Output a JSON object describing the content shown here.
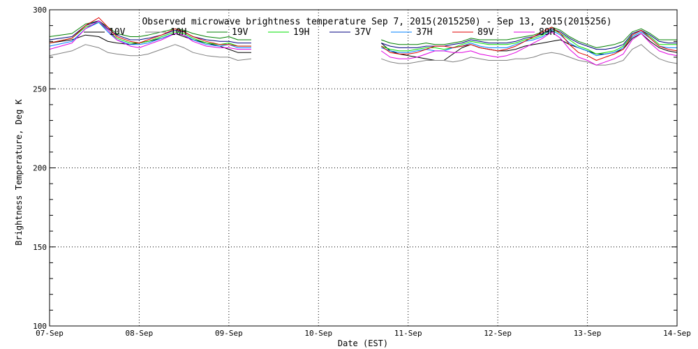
{
  "chart_data": {
    "type": "line",
    "title": "Observed microwave brightness temperature Sep  7, 2015(2015250) - Sep 13, 2015(2015256)",
    "xlabel": "Date (EST)",
    "ylabel": "Brightness Temperature, Deg K",
    "ylim": [
      100,
      300
    ],
    "xlim": [
      0,
      7
    ],
    "grid": true,
    "legend_position": "top",
    "y_ticks": [
      100,
      150,
      200,
      250,
      300
    ],
    "x_ticks": [
      {
        "x": 0,
        "label": "07-Sep"
      },
      {
        "x": 1,
        "label": "08-Sep"
      },
      {
        "x": 2,
        "label": "09-Sep"
      },
      {
        "x": 3,
        "label": "10-Sep"
      },
      {
        "x": 4,
        "label": "11-Sep"
      },
      {
        "x": 5,
        "label": "12-Sep"
      },
      {
        "x": 6,
        "label": "13-Sep"
      },
      {
        "x": 7,
        "label": "14-Sep"
      }
    ],
    "x": [
      0.0,
      0.25,
      0.4,
      0.55,
      0.65,
      0.75,
      0.9,
      1.0,
      1.1,
      1.25,
      1.4,
      1.5,
      1.6,
      1.75,
      1.9,
      2.0,
      2.1,
      2.25,
      null,
      3.7,
      3.8,
      3.9,
      4.0,
      4.1,
      4.2,
      4.3,
      4.4,
      4.5,
      4.6,
      4.7,
      4.8,
      4.9,
      5.0,
      5.1,
      5.2,
      5.3,
      5.4,
      5.5,
      5.6,
      5.7,
      5.8,
      5.9,
      6.0,
      6.1,
      6.2,
      6.3,
      6.4,
      6.5,
      6.6,
      6.7,
      6.8,
      6.9,
      7.0
    ],
    "series": [
      {
        "name": "10V",
        "color": "#000000",
        "values": [
          279,
          281,
          284,
          283,
          280,
          279,
          278,
          279,
          280,
          282,
          285,
          283,
          281,
          279,
          277,
          275,
          273,
          273,
          null,
          279,
          274,
          272,
          271,
          270,
          269,
          268,
          268,
          272,
          276,
          278,
          276,
          275,
          274,
          274,
          275,
          277,
          278,
          279,
          280,
          281,
          278,
          276,
          274,
          272,
          272,
          273,
          275,
          282,
          285,
          280,
          276,
          274,
          273
        ]
      },
      {
        "name": "10H",
        "color": "#808080",
        "values": [
          271,
          274,
          278,
          276,
          273,
          272,
          271,
          271,
          272,
          275,
          278,
          276,
          273,
          271,
          270,
          270,
          268,
          269,
          null,
          269,
          267,
          266,
          266,
          267,
          268,
          268,
          268,
          267,
          268,
          270,
          269,
          268,
          268,
          268,
          269,
          269,
          270,
          272,
          273,
          272,
          270,
          268,
          267,
          265,
          265,
          266,
          268,
          275,
          278,
          273,
          269,
          267,
          266
        ]
      },
      {
        "name": "19V",
        "color": "#008000",
        "values": [
          283,
          285,
          291,
          293,
          289,
          285,
          283,
          283,
          284,
          286,
          288,
          287,
          285,
          283,
          282,
          283,
          281,
          281,
          null,
          281,
          279,
          278,
          278,
          278,
          279,
          278,
          278,
          279,
          280,
          282,
          281,
          281,
          281,
          281,
          282,
          283,
          284,
          286,
          289,
          287,
          283,
          280,
          278,
          276,
          277,
          278,
          280,
          286,
          288,
          285,
          281,
          281,
          281
        ]
      },
      {
        "name": "19H",
        "color": "#00e000",
        "values": [
          279,
          282,
          289,
          292,
          287,
          282,
          279,
          279,
          280,
          283,
          286,
          285,
          282,
          279,
          278,
          279,
          277,
          277,
          null,
          277,
          275,
          274,
          274,
          275,
          276,
          276,
          275,
          276,
          278,
          280,
          279,
          278,
          278,
          278,
          279,
          281,
          282,
          284,
          288,
          285,
          281,
          277,
          275,
          272,
          273,
          274,
          277,
          284,
          287,
          283,
          278,
          278,
          278
        ]
      },
      {
        "name": "37V",
        "color": "#000080",
        "values": [
          281,
          283,
          290,
          293,
          288,
          284,
          281,
          281,
          282,
          284,
          287,
          286,
          283,
          281,
          280,
          280,
          279,
          279,
          null,
          279,
          277,
          276,
          276,
          276,
          277,
          277,
          277,
          278,
          279,
          281,
          280,
          279,
          279,
          279,
          280,
          282,
          283,
          285,
          288,
          286,
          282,
          279,
          277,
          275,
          275,
          276,
          278,
          285,
          287,
          284,
          280,
          279,
          279
        ]
      },
      {
        "name": "37H",
        "color": "#0080ff",
        "values": [
          277,
          280,
          288,
          292,
          286,
          281,
          278,
          278,
          279,
          282,
          285,
          284,
          281,
          278,
          277,
          278,
          276,
          276,
          null,
          276,
          274,
          273,
          273,
          274,
          275,
          274,
          274,
          276,
          277,
          279,
          277,
          276,
          276,
          276,
          278,
          280,
          281,
          283,
          287,
          284,
          279,
          276,
          274,
          271,
          272,
          273,
          276,
          283,
          286,
          282,
          277,
          276,
          276
        ]
      },
      {
        "name": "89V",
        "color": "#e00000",
        "values": [
          279,
          282,
          290,
          295,
          289,
          283,
          280,
          279,
          281,
          284,
          288,
          286,
          283,
          280,
          278,
          278,
          277,
          277,
          null,
          277,
          273,
          272,
          272,
          273,
          275,
          277,
          277,
          276,
          277,
          278,
          276,
          275,
          274,
          275,
          277,
          280,
          283,
          286,
          289,
          285,
          278,
          273,
          271,
          268,
          270,
          272,
          275,
          284,
          287,
          282,
          277,
          275,
          274
        ]
      },
      {
        "name": "89H",
        "color": "#e000e0",
        "values": [
          275,
          279,
          288,
          293,
          287,
          281,
          277,
          276,
          278,
          281,
          285,
          284,
          280,
          277,
          276,
          276,
          275,
          275,
          null,
          274,
          270,
          269,
          269,
          270,
          272,
          274,
          274,
          273,
          273,
          274,
          272,
          271,
          270,
          271,
          273,
          276,
          279,
          282,
          286,
          282,
          275,
          270,
          268,
          265,
          267,
          269,
          272,
          281,
          285,
          279,
          274,
          272,
          271
        ]
      }
    ]
  }
}
